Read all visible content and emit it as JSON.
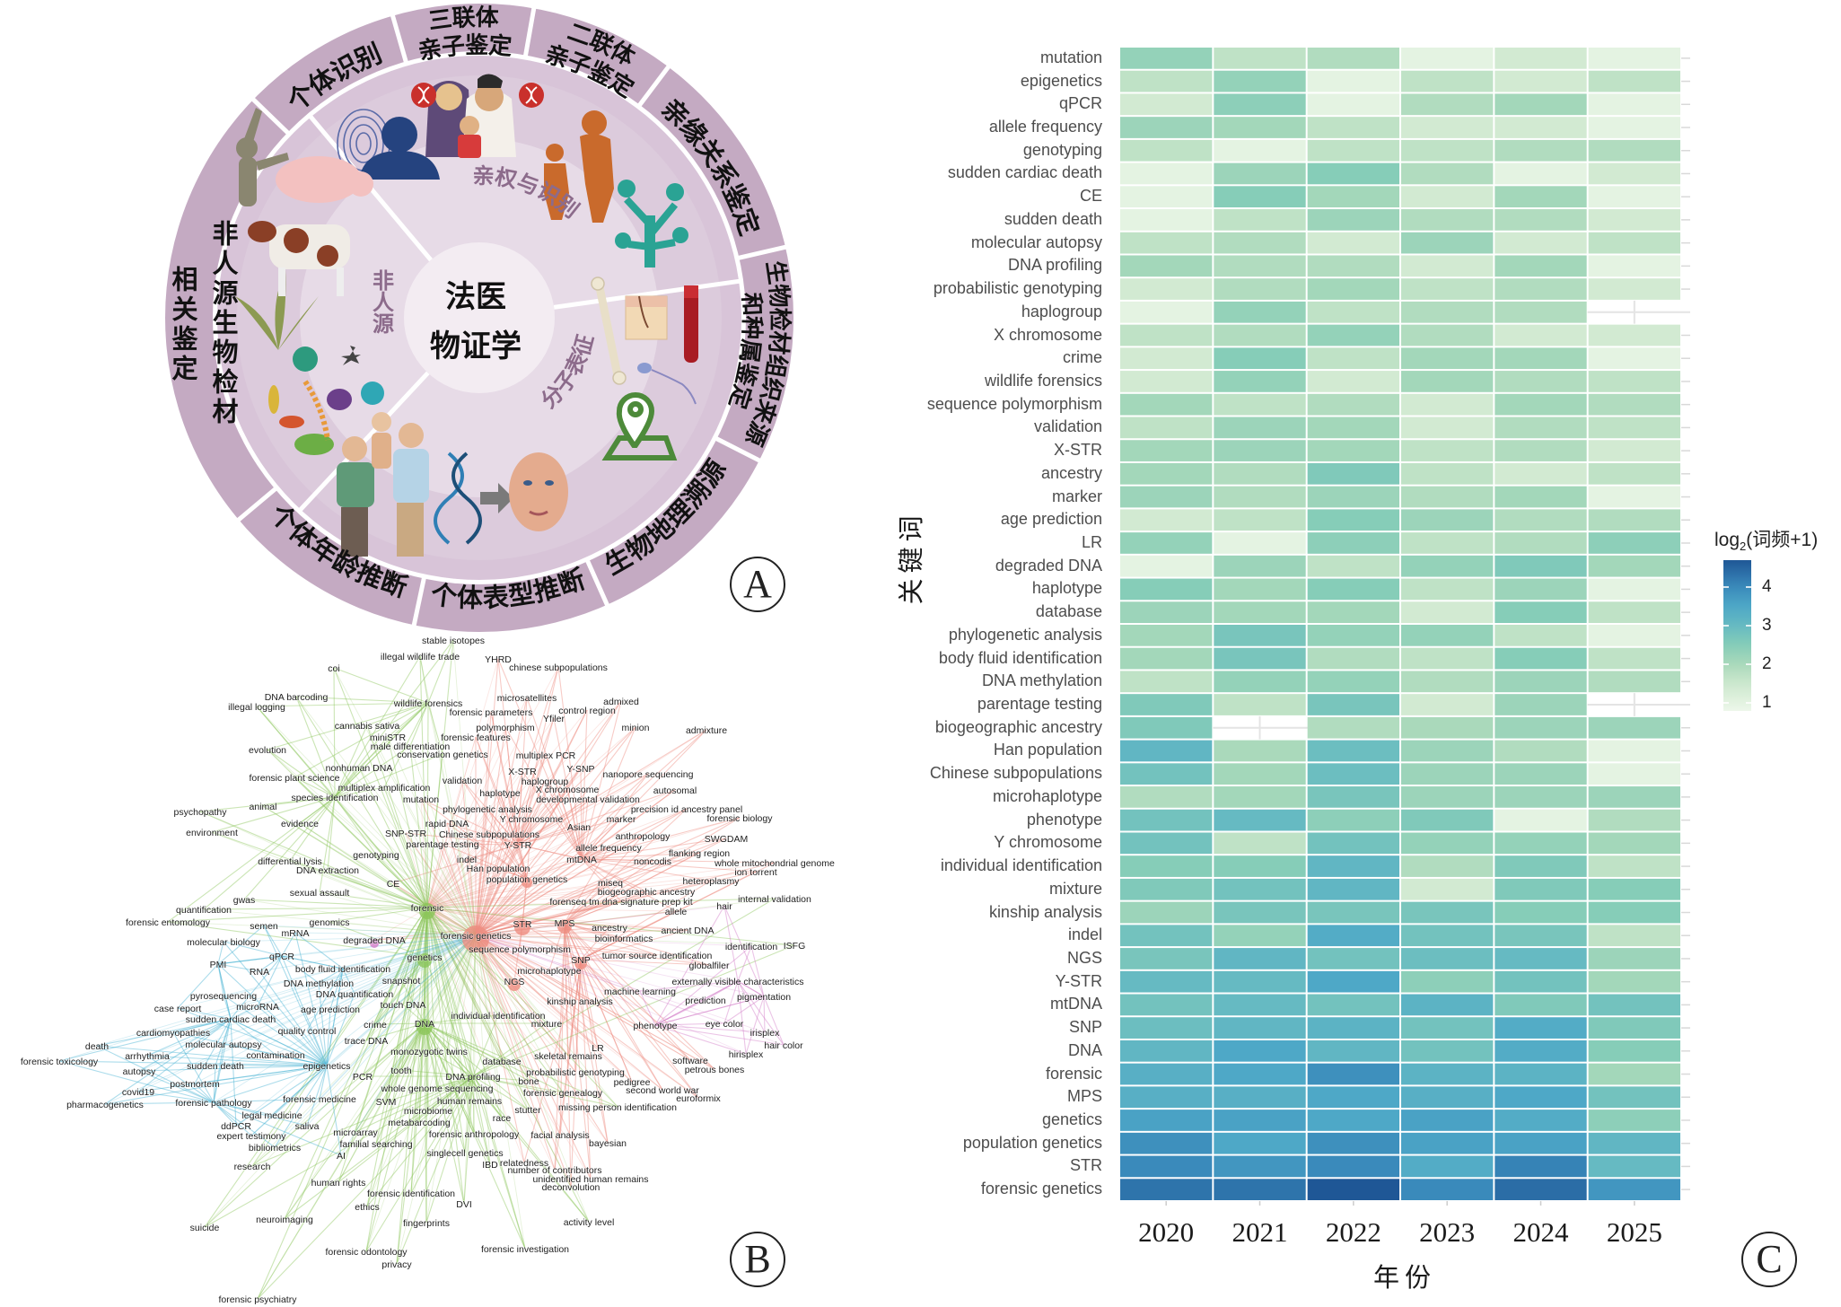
{
  "panel_a": {
    "center_title": [
      "法医",
      "物证学"
    ],
    "inner_labels": {
      "paternity": "亲权与识别",
      "nonhuman": "非人源",
      "molecular": "分子表征"
    },
    "outer_labels": [
      {
        "lines": [
          "个体识别"
        ]
      },
      {
        "lines": [
          "三联体",
          "亲子鉴定"
        ]
      },
      {
        "lines": [
          "二联体",
          "亲子鉴定"
        ]
      },
      {
        "lines": [
          "亲缘关系鉴定"
        ]
      },
      {
        "lines": [
          "生物检材组织来源",
          "和种属鉴定"
        ]
      },
      {
        "lines": [
          "生物地理溯源"
        ]
      },
      {
        "lines": [
          "个体表型推断"
        ]
      },
      {
        "lines": [
          "个体年龄推断"
        ]
      },
      {
        "lines": [
          "非人源生物检材",
          "相关鉴定"
        ]
      }
    ],
    "letter": "A"
  },
  "panel_b": {
    "letter": "B",
    "colors": {
      "red": "#ee8c80",
      "green": "#8cc65a",
      "blue": "#45b2d3",
      "pink": "#d27cc8"
    },
    "clusters": {
      "red": [
        "YHRD",
        "chinese subpopulations",
        "microsatellites",
        "forensic parameters",
        "admixed",
        "control region",
        "Yfiler",
        "polymorphism",
        "minion",
        "admixture",
        "forensic features",
        "multiplex PCR",
        "X-STR",
        "Y-SNP",
        "nanopore sequencing",
        "validation",
        "haplogroup",
        "X chromosome",
        "autosomal",
        "haplotype",
        "mutation",
        "developmental validation",
        "phylogenetic analysis",
        "precision id ancestry panel",
        "Y chromosome",
        "marker",
        "forensic biology",
        "rapid DNA",
        "Asian",
        "SNP-STR",
        "Chinese subpopulations",
        "anthropology",
        "SWGDAM",
        "parentage testing",
        "Y-STR",
        "allele frequency",
        "flanking region",
        "indel",
        "mtDNA",
        "noncodis",
        "whole mitochondrial genome",
        "Han population",
        "ion torrent",
        "CE",
        "population genetics",
        "miseq",
        "heteroplasmy",
        "biogeographic ancestry",
        "degraded DNA",
        "forenseq tm dna signature prep kit",
        "allele",
        "STR",
        "MPS",
        "ancestry",
        "ancient DNA",
        "forensic genetics",
        "bioinformatics",
        "sequence polymorphism",
        "SNP",
        "tumor source identification",
        "globalfiler",
        "microhaplotype",
        "NGS",
        "kinship analysis",
        "LR",
        "skeletal remains",
        "software",
        "probabilistic genotyping",
        "petrous bones",
        "pedigree",
        "second world war",
        "euroformix",
        "facial analysis",
        "bayesian",
        "relatedness",
        "number of contributors",
        "unidentified human remains",
        "deconvolution"
      ],
      "green": [
        "stable isotopes",
        "illegal wildlife trade",
        "coi",
        "DNA barcoding",
        "illegal logging",
        "wildlife forensics",
        "cannabis sativa",
        "miniSTR",
        "male differentiation",
        "evolution",
        "conservation genetics",
        "nonhuman DNA",
        "forensic plant science",
        "multiplex amplification",
        "animal",
        "species identification",
        "psychopathy",
        "evidence",
        "environment",
        "genotyping",
        "differential lysis",
        "DNA extraction",
        "sexual assault",
        "gwas",
        "quantification",
        "forensic entomology",
        "genomics",
        "snapshot",
        "touch DNA",
        "crime",
        "DNA",
        "trace DNA",
        "monozygotic twins",
        "PCR",
        "tooth",
        "whole genome sequencing",
        "SVM",
        "microbiome",
        "internal validation",
        "forensic",
        "ISFG",
        "genetics",
        "individual identification",
        "mixture",
        "database",
        "DNA profiling",
        "bone",
        "forensic genealogy",
        "human remains",
        "stutter",
        "missing person identification",
        "race",
        "metabarcoding",
        "microarray",
        "forensic anthropology",
        "familial searching",
        "singlecell genetics",
        "IBD",
        "research",
        "human rights",
        "forensic identification",
        "DVI",
        "ethics",
        "activity level",
        "suicide",
        "neuroimaging",
        "fingerprints",
        "forensic investigation",
        "forensic odontology",
        "privacy",
        "forensic psychiatry"
      ],
      "blue": [
        "semen",
        "mRNA",
        "molecular biology",
        "qPCR",
        "PMI",
        "body fluid identification",
        "RNA",
        "DNA methylation",
        "pyrosequencing",
        "DNA quantification",
        "case report",
        "microRNA",
        "age prediction",
        "sudden cardiac death",
        "cardiomyopathies",
        "quality control",
        "molecular autopsy",
        "death",
        "forensic toxicology",
        "arrhythmia",
        "contamination",
        "sudden death",
        "epigenetics",
        "autopsy",
        "postmortem",
        "covid19",
        "pharmacogenetics",
        "forensic pathology",
        "forensic medicine",
        "legal medicine",
        "ddPCR",
        "saliva",
        "expert testimony",
        "bibliometrics",
        "AI"
      ],
      "pink": [
        "hair",
        "identification",
        "externally visible characteristics",
        "machine learning",
        "pigmentation",
        "prediction",
        "phenotype",
        "eye color",
        "irisplex",
        "hair color",
        "hirisplex"
      ]
    }
  },
  "chart_data": {
    "type": "heatmap",
    "letter": "C",
    "xlabel": "年份",
    "ylabel": "关键词",
    "legend_title": "log2(词频+1)",
    "legend_title_parts": {
      "base": "log",
      "sub": "2",
      "rest": "(词频+1)"
    },
    "legend_ticks": [
      1,
      2,
      3,
      4
    ],
    "value_range": [
      0.8,
      4.7
    ],
    "legend_placement": "right",
    "years": [
      "2020",
      "2021",
      "2022",
      "2023",
      "2024",
      "2025"
    ],
    "keywords": [
      "mutation",
      "epigenetics",
      "qPCR",
      "allele frequency",
      "genotyping",
      "sudden cardiac death",
      "CE",
      "sudden death",
      "molecular autopsy",
      "DNA profiling",
      "probabilistic genotyping",
      "haplogroup",
      "X chromosome",
      "crime",
      "wildlife forensics",
      "sequence polymorphism",
      "validation",
      "X-STR",
      "ancestry",
      "marker",
      "age prediction",
      "LR",
      "degraded DNA",
      "haplotype",
      "database",
      "phylogenetic analysis",
      "body fluid identification",
      "DNA methylation",
      "parentage testing",
      "biogeographic ancestry",
      "Han population",
      "Chinese subpopulations",
      "microhaplotype",
      "phenotype",
      "Y chromosome",
      "individual identification",
      "mixture",
      "kinship analysis",
      "indel",
      "NGS",
      "Y-STR",
      "mtDNA",
      "SNP",
      "DNA",
      "forensic",
      "MPS",
      "genetics",
      "population genetics",
      "STR",
      "forensic genetics"
    ],
    "values": [
      [
        2.3,
        1.7,
        1.9,
        1.0,
        1.4,
        1.0
      ],
      [
        1.7,
        2.3,
        1.0,
        1.7,
        1.4,
        1.7
      ],
      [
        1.4,
        2.4,
        1.0,
        1.9,
        2.1,
        1.0
      ],
      [
        2.2,
        2.1,
        1.7,
        1.4,
        1.4,
        1.0
      ],
      [
        1.7,
        1.0,
        1.7,
        1.7,
        1.9,
        1.9
      ],
      [
        1.0,
        2.2,
        2.5,
        1.9,
        1.0,
        1.4
      ],
      [
        1.0,
        2.5,
        2.1,
        1.4,
        2.1,
        1.0
      ],
      [
        1.0,
        1.7,
        2.2,
        1.9,
        1.9,
        1.4
      ],
      [
        1.7,
        1.9,
        1.4,
        2.2,
        1.4,
        1.7
      ],
      [
        2.1,
        1.9,
        1.9,
        1.4,
        2.1,
        1.0
      ],
      [
        1.4,
        1.9,
        2.1,
        1.7,
        1.9,
        1.4
      ],
      [
        1.0,
        2.3,
        1.7,
        1.9,
        1.9,
        null
      ],
      [
        1.7,
        1.9,
        2.3,
        1.9,
        1.4,
        1.4
      ],
      [
        1.4,
        2.5,
        1.7,
        2.1,
        2.1,
        1.0
      ],
      [
        1.4,
        2.3,
        1.4,
        2.1,
        1.9,
        1.7
      ],
      [
        2.1,
        1.7,
        1.9,
        1.4,
        2.1,
        1.9
      ],
      [
        1.7,
        2.2,
        2.1,
        1.4,
        1.9,
        1.7
      ],
      [
        2.1,
        2.2,
        2.1,
        1.7,
        1.9,
        1.4
      ],
      [
        2.1,
        1.9,
        2.6,
        1.7,
        1.4,
        1.7
      ],
      [
        2.2,
        1.9,
        2.2,
        1.9,
        2.1,
        1.0
      ],
      [
        1.4,
        1.7,
        2.5,
        2.2,
        1.9,
        1.9
      ],
      [
        2.3,
        1.0,
        2.4,
        1.7,
        1.9,
        2.4
      ],
      [
        1.0,
        2.2,
        1.7,
        2.3,
        2.6,
        2.1
      ],
      [
        2.5,
        2.1,
        2.5,
        1.7,
        2.2,
        1.0
      ],
      [
        2.2,
        2.1,
        2.1,
        1.4,
        2.5,
        1.7
      ],
      [
        2.1,
        2.7,
        2.3,
        2.3,
        1.7,
        1.0
      ],
      [
        2.1,
        2.7,
        1.9,
        1.7,
        2.5,
        1.7
      ],
      [
        1.7,
        2.3,
        2.3,
        1.9,
        2.2,
        1.9
      ],
      [
        2.6,
        1.7,
        2.7,
        1.4,
        2.2,
        null
      ],
      [
        2.6,
        null,
        1.9,
        2.0,
        2.2,
        2.2
      ],
      [
        3.1,
        2.0,
        2.9,
        2.2,
        1.9,
        1.0
      ],
      [
        2.8,
        2.1,
        2.9,
        2.2,
        2.2,
        1.0
      ],
      [
        1.9,
        2.1,
        2.7,
        2.2,
        2.2,
        2.2
      ],
      [
        2.8,
        3.0,
        2.4,
        2.6,
        1.0,
        1.9
      ],
      [
        2.8,
        1.7,
        2.8,
        2.3,
        2.3,
        2.1
      ],
      [
        2.5,
        2.5,
        3.1,
        1.9,
        2.6,
        1.7
      ],
      [
        2.6,
        2.8,
        3.1,
        1.4,
        2.6,
        2.5
      ],
      [
        2.2,
        2.7,
        2.7,
        2.7,
        2.5,
        2.5
      ],
      [
        2.8,
        2.3,
        3.4,
        2.8,
        2.7,
        1.7
      ],
      [
        2.7,
        3.1,
        2.8,
        2.9,
        3.0,
        2.2
      ],
      [
        3.0,
        3.0,
        3.5,
        2.4,
        2.8,
        2.1
      ],
      [
        2.8,
        3.0,
        2.8,
        3.2,
        2.6,
        2.8
      ],
      [
        2.9,
        3.1,
        3.2,
        2.8,
        3.4,
        2.6
      ],
      [
        3.1,
        3.5,
        3.1,
        2.8,
        3.4,
        2.5
      ],
      [
        3.3,
        3.5,
        3.9,
        3.2,
        3.2,
        2.1
      ],
      [
        3.3,
        3.3,
        3.5,
        3.3,
        3.5,
        2.8
      ],
      [
        3.6,
        3.6,
        3.5,
        3.6,
        3.4,
        2.4
      ],
      [
        3.9,
        3.5,
        3.9,
        3.6,
        3.6,
        3.1
      ],
      [
        4.0,
        3.8,
        4.0,
        3.4,
        4.1,
        3.0
      ],
      [
        4.3,
        4.3,
        4.7,
        4.0,
        4.4,
        3.8
      ]
    ]
  }
}
